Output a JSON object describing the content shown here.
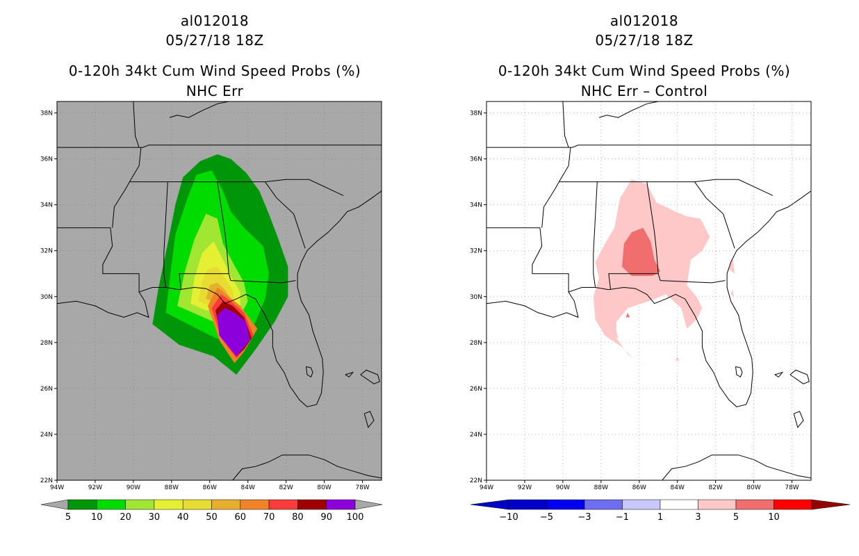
{
  "panels": {
    "left": {
      "title_storm": "al012018",
      "title_date": "05/27/18 18Z",
      "title_product": "0-120h 34kt Cum Wind Speed Probs (%)",
      "title_sub": "NHC Err",
      "background_color": "#a8a8a8",
      "colorbar": {
        "colors": [
          "#00960a",
          "#00dc00",
          "#a0e632",
          "#e6f032",
          "#e6dc32",
          "#e6af2d",
          "#f08228",
          "#fa3c3c",
          "#a00000",
          "#8c00dc"
        ],
        "labels": [
          "5",
          "10",
          "20",
          "30",
          "40",
          "50",
          "60",
          "70",
          "80",
          "90",
          "100"
        ]
      }
    },
    "right": {
      "title_storm": "al012018",
      "title_date": "05/27/18 18Z",
      "title_product": "0-120h 34kt Cum Wind Speed Probs (%)",
      "title_sub": "NHC Err – Control",
      "background_color": "#ffffff",
      "colorbar": {
        "colors": [
          "#0000c8",
          "#0000f0",
          "#6e6ef0",
          "#c8c8ff",
          "#ffffff",
          "#ffc8c8",
          "#f06e6e",
          "#ff0000",
          "#960000"
        ],
        "labels": [
          "−10",
          "−5",
          "−3",
          "−1",
          "1",
          "3",
          "5",
          "10"
        ]
      }
    }
  },
  "axes": {
    "lat_labels": [
      "38N",
      "36N",
      "34N",
      "32N",
      "30N",
      "28N",
      "26N",
      "24N",
      "22N"
    ],
    "lon_labels": [
      "94W",
      "92W",
      "90W",
      "88W",
      "86W",
      "84W",
      "82W",
      "80W",
      "78W"
    ]
  }
}
